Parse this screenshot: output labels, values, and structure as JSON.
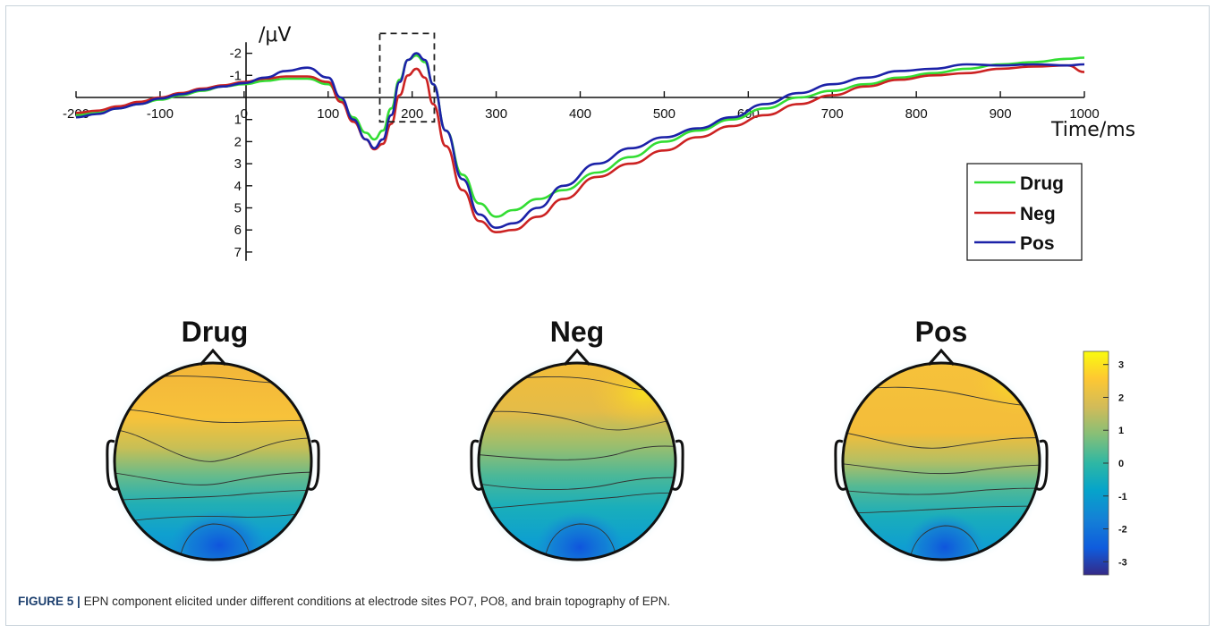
{
  "figure": {
    "caption_label": "FIGURE 5",
    "caption_separator": "|",
    "caption_text": "EPN component elicited under different conditions at electrode sites PO7, PO8, and brain topography of EPN."
  },
  "chart_data": [
    {
      "type": "line",
      "ylabel": "/μV",
      "xlabel": "Time/ms",
      "xlim": [
        -200,
        1000
      ],
      "ylim": [
        -2.5,
        7.4
      ],
      "y_inverted": true,
      "x_ticks": [
        -200,
        -100,
        0,
        100,
        200,
        300,
        400,
        500,
        600,
        700,
        800,
        900,
        1000
      ],
      "x_tick_labels": [
        "-200",
        "-100",
        "0",
        "100",
        "200",
        "300",
        "400",
        "500",
        "600",
        "700",
        "800",
        "900",
        "1000"
      ],
      "y_ticks": [
        -2,
        -1,
        1,
        2,
        3,
        4,
        5,
        6,
        7
      ],
      "y_tick_labels": [
        "-2",
        "-1",
        "1",
        "2",
        "3",
        "4",
        "5",
        "6",
        "7"
      ],
      "annotation": {
        "type": "dashed-box",
        "x_range": [
          170,
          220
        ],
        "y_range": [
          -2.9,
          1.1
        ]
      },
      "legend_position": "right",
      "series": [
        {
          "name": "Drug",
          "color": "#33dd33",
          "x": [
            -200,
            -175,
            -150,
            -125,
            -100,
            -75,
            -50,
            -25,
            0,
            25,
            50,
            75,
            100,
            115,
            130,
            145,
            155,
            165,
            175,
            185,
            195,
            205,
            215,
            225,
            240,
            260,
            280,
            300,
            320,
            350,
            380,
            420,
            460,
            500,
            540,
            580,
            620,
            660,
            700,
            740,
            780,
            820,
            860,
            900,
            940,
            980,
            1000
          ],
          "y": [
            0.8,
            0.7,
            0.5,
            0.3,
            0.1,
            -0.1,
            -0.3,
            -0.5,
            -0.6,
            -0.75,
            -0.85,
            -0.85,
            -0.6,
            0.1,
            0.9,
            1.6,
            1.9,
            1.5,
            0.5,
            -0.8,
            -1.7,
            -1.9,
            -1.6,
            -0.6,
            1.5,
            3.5,
            4.8,
            5.4,
            5.1,
            4.6,
            4.2,
            3.4,
            2.7,
            2.0,
            1.5,
            1.0,
            0.5,
            0.0,
            -0.3,
            -0.6,
            -0.9,
            -1.1,
            -1.3,
            -1.5,
            -1.6,
            -1.75,
            -1.8
          ]
        },
        {
          "name": "Neg",
          "color": "#cc2222",
          "x": [
            -200,
            -175,
            -150,
            -125,
            -100,
            -75,
            -50,
            -25,
            0,
            25,
            50,
            75,
            100,
            115,
            130,
            145,
            155,
            165,
            175,
            185,
            195,
            205,
            215,
            225,
            240,
            260,
            280,
            300,
            320,
            350,
            380,
            420,
            460,
            500,
            540,
            580,
            620,
            660,
            700,
            740,
            780,
            820,
            860,
            900,
            940,
            980,
            1000
          ],
          "y": [
            0.7,
            0.6,
            0.4,
            0.2,
            0.0,
            -0.2,
            -0.4,
            -0.55,
            -0.7,
            -0.85,
            -0.95,
            -0.95,
            -0.7,
            0.2,
            1.1,
            1.9,
            2.35,
            2.1,
            1.2,
            -0.1,
            -1.0,
            -1.3,
            -0.9,
            0.3,
            2.2,
            4.2,
            5.6,
            6.1,
            6.0,
            5.4,
            4.6,
            3.6,
            3.0,
            2.4,
            1.8,
            1.3,
            0.8,
            0.3,
            -0.1,
            -0.5,
            -0.8,
            -1.0,
            -1.1,
            -1.3,
            -1.4,
            -1.45,
            -1.15
          ]
        },
        {
          "name": "Pos",
          "color": "#1c22a8",
          "x": [
            -200,
            -175,
            -150,
            -125,
            -100,
            -75,
            -50,
            -25,
            0,
            25,
            50,
            75,
            100,
            115,
            130,
            145,
            155,
            165,
            175,
            185,
            195,
            205,
            215,
            225,
            240,
            260,
            280,
            300,
            320,
            350,
            380,
            420,
            460,
            500,
            540,
            580,
            620,
            660,
            700,
            740,
            780,
            820,
            860,
            900,
            940,
            980,
            1000
          ],
          "y": [
            0.9,
            0.75,
            0.5,
            0.3,
            0.05,
            -0.15,
            -0.35,
            -0.5,
            -0.65,
            -0.9,
            -1.2,
            -1.35,
            -0.9,
            0.0,
            1.0,
            1.9,
            2.3,
            1.9,
            0.8,
            -0.7,
            -1.7,
            -2.0,
            -1.7,
            -0.6,
            1.5,
            3.7,
            5.3,
            5.9,
            5.7,
            5.0,
            4.0,
            3.0,
            2.3,
            1.8,
            1.4,
            0.9,
            0.3,
            -0.2,
            -0.6,
            -0.9,
            -1.2,
            -1.3,
            -1.5,
            -1.45,
            -1.5,
            -1.45,
            -1.5
          ]
        }
      ]
    },
    {
      "type": "heatmap",
      "panels": [
        "Drug",
        "Neg",
        "Pos"
      ],
      "colormap": [
        "#352a87",
        "#0f5cdd",
        "#1481d6",
        "#06a4ca",
        "#2eb7a4",
        "#87bf77",
        "#d1bb59",
        "#fec832",
        "#f9fb0e"
      ],
      "colorbar_ticks": [
        3,
        2,
        1,
        0,
        -1,
        -2,
        -3
      ],
      "colorbar_tick_labels": [
        "3",
        "2",
        "1",
        "0",
        "-1",
        "-2",
        "-3"
      ],
      "colorbar_range": [
        -3.4,
        3.4
      ]
    }
  ]
}
